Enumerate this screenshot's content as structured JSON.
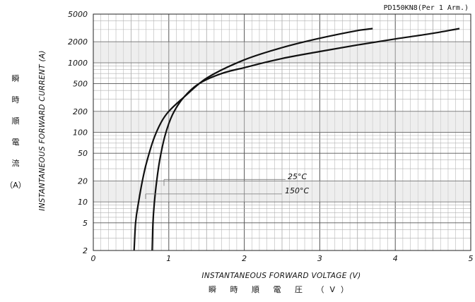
{
  "chart_data": {
    "type": "line",
    "title": "PD150KN8(Per 1 Arm.)",
    "xlabel": "INSTANTANEOUS FORWARD VOLTAGE (V)",
    "xlabel_jp": "瞬 時 順 電 圧 （V）",
    "ylabel": "INSTANTANEOUS FORWARD CURRENT (A)",
    "ylabel_jp": [
      "瞬",
      "時",
      "順",
      "電",
      "流",
      "（A）"
    ],
    "xlim": [
      0,
      5
    ],
    "ylim": [
      2,
      5000
    ],
    "y_scale": "log",
    "grid": true,
    "x_ticks": [
      "0",
      "1",
      "2",
      "3",
      "4",
      "5"
    ],
    "y_ticks": [
      {
        "value": 2,
        "label": "2"
      },
      {
        "value": 5,
        "label": "5"
      },
      {
        "value": 10,
        "label": "10"
      },
      {
        "value": 20,
        "label": "20"
      },
      {
        "value": 50,
        "label": "50"
      },
      {
        "value": 100,
        "label": "100"
      },
      {
        "value": 200,
        "label": "200"
      },
      {
        "value": 500,
        "label": "500"
      },
      {
        "value": 1000,
        "label": "1000"
      },
      {
        "value": 2000,
        "label": "2000"
      },
      {
        "value": 5000,
        "label": "5000"
      }
    ],
    "series": [
      {
        "name": "150°C",
        "color": "#111111",
        "x": [
          0.54,
          0.56,
          0.6,
          0.65,
          0.7,
          0.8,
          0.9,
          1.0,
          1.2,
          1.5,
          2.0,
          2.5,
          3.0,
          3.5,
          3.7
        ],
        "y": [
          2,
          5,
          10,
          20,
          35,
          80,
          140,
          200,
          320,
          600,
          1100,
          1650,
          2250,
          2900,
          3100
        ]
      },
      {
        "name": "25°C",
        "color": "#111111",
        "x": [
          0.78,
          0.79,
          0.81,
          0.84,
          0.88,
          0.95,
          1.05,
          1.2,
          1.4,
          1.7,
          2.0,
          2.5,
          3.0,
          3.5,
          4.0,
          4.5,
          4.85
        ],
        "y": [
          2,
          5,
          10,
          20,
          40,
          90,
          180,
          320,
          500,
          700,
          850,
          1150,
          1450,
          1800,
          2200,
          2650,
          3100
        ]
      }
    ],
    "annotations": [
      {
        "text": "25°C"
      },
      {
        "text": "150°C"
      }
    ]
  }
}
